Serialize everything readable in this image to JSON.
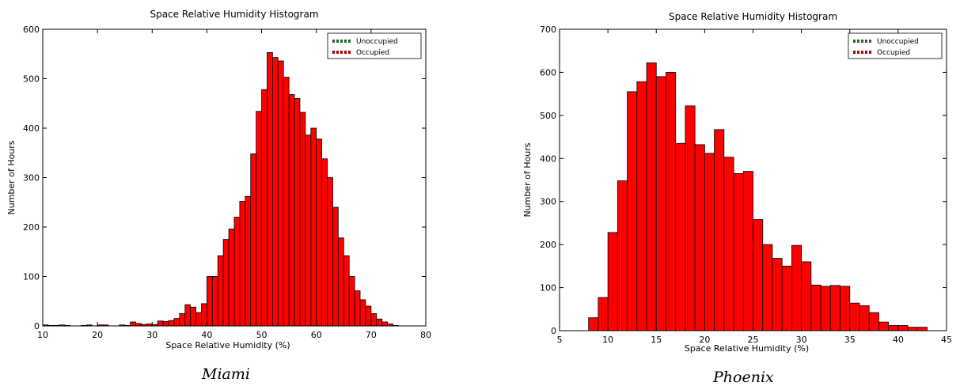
{
  "chart_data": [
    {
      "type": "bar",
      "title": "Space Relative Humidity Histogram",
      "xlabel": "Space Relative Humidity (%)",
      "ylabel": "Number of Hours",
      "caption": "Miami",
      "xlim": [
        10,
        80
      ],
      "ylim": [
        0,
        600
      ],
      "xticks": [
        "10",
        "20",
        "30",
        "40",
        "50",
        "60",
        "70",
        "80"
      ],
      "yticks": [
        "0",
        "100",
        "200",
        "300",
        "400",
        "500",
        "600"
      ],
      "legend": {
        "placement": "top-right",
        "entries": [
          {
            "name": "Unoccupied",
            "color": "#1e6b1e"
          },
          {
            "name": "Occupied",
            "color": "#b00000"
          }
        ]
      },
      "bar_color": "#ff0000",
      "bin_width": 1,
      "series": [
        {
          "name": "Occupied",
          "x": [
            10,
            11,
            12,
            13,
            14,
            15,
            16,
            17,
            18,
            19,
            20,
            21,
            22,
            23,
            24,
            25,
            26,
            27,
            28,
            29,
            30,
            31,
            32,
            33,
            34,
            35,
            36,
            37,
            38,
            39,
            40,
            41,
            42,
            43,
            44,
            45,
            46,
            47,
            48,
            49,
            50,
            51,
            52,
            53,
            54,
            55,
            56,
            57,
            58,
            59,
            60,
            61,
            62,
            63,
            64,
            65,
            66,
            67,
            68,
            69,
            70,
            71,
            72,
            73,
            74
          ],
          "values": [
            2,
            1,
            1,
            2,
            1,
            0,
            0,
            1,
            2,
            0,
            2,
            2,
            0,
            0,
            2,
            1,
            8,
            5,
            3,
            4,
            3,
            10,
            9,
            11,
            15,
            25,
            43,
            38,
            27,
            45,
            100,
            100,
            142,
            175,
            196,
            220,
            252,
            262,
            348,
            434,
            478,
            553,
            543,
            536,
            503,
            468,
            460,
            432,
            386,
            400,
            378,
            338,
            300,
            240,
            178,
            142,
            100,
            71,
            53,
            40,
            25,
            14,
            8,
            4,
            1
          ]
        }
      ]
    },
    {
      "type": "bar",
      "title": "Space Relative Humidity Histogram",
      "xlabel": "Space Relative Humidity (%)",
      "ylabel": "Number of Hours",
      "caption": "Phoenix",
      "xlim": [
        5,
        45
      ],
      "ylim": [
        0,
        700
      ],
      "xticks": [
        "5",
        "10",
        "15",
        "20",
        "25",
        "30",
        "35",
        "40",
        "45"
      ],
      "yticks": [
        "0",
        "100",
        "200",
        "300",
        "400",
        "500",
        "600",
        "700"
      ],
      "legend": {
        "placement": "top-right",
        "entries": [
          {
            "name": "Unoccupied",
            "color": "#1e6b1e"
          },
          {
            "name": "Occupied",
            "color": "#b00000"
          }
        ]
      },
      "bar_color": "#ff0000",
      "bin_width": 1,
      "series": [
        {
          "name": "Occupied",
          "x": [
            8,
            9,
            10,
            11,
            12,
            13,
            14,
            15,
            16,
            17,
            18,
            19,
            20,
            21,
            22,
            23,
            24,
            25,
            26,
            27,
            28,
            29,
            30,
            31,
            32,
            33,
            34,
            35,
            36,
            37,
            38,
            39,
            40,
            41,
            42
          ],
          "values": [
            30,
            77,
            228,
            348,
            555,
            578,
            622,
            590,
            600,
            435,
            522,
            432,
            412,
            467,
            403,
            365,
            370,
            258,
            200,
            168,
            150,
            198,
            160,
            106,
            103,
            105,
            103,
            64,
            58,
            42,
            20,
            12,
            12,
            8,
            8
          ]
        }
      ]
    }
  ]
}
